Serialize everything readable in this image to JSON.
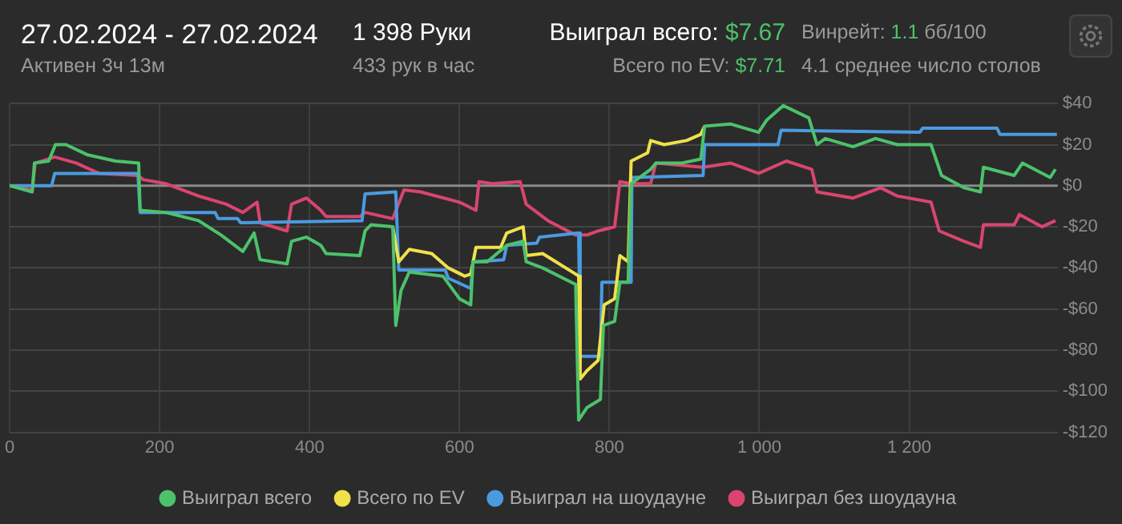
{
  "chart_data": {
    "type": "line",
    "title": "27.02.2024 - 27.02.2024",
    "subtitle": "Активен 3ч 13м",
    "annotations": [
      "1 398 Руки",
      "433 рук в час",
      "Выиграл всего: $7.67",
      "Всего по EV: $7.71",
      "Винрейт: 1.1 бб/100",
      "4.1 среднее число столов"
    ],
    "xlim": [
      0,
      1398
    ],
    "xticks": [
      0,
      200,
      400,
      600,
      800,
      {
        "value": 1000,
        "label": "1 000"
      },
      {
        "value": 1200,
        "label": "1 200"
      }
    ],
    "ylim": [
      -120,
      40
    ],
    "yticks": [
      {
        "value": 40,
        "label": "$40"
      },
      {
        "value": 20,
        "label": "$20"
      },
      {
        "value": 0,
        "label": "$0"
      },
      {
        "value": -20,
        "label": "-$20"
      },
      {
        "value": -40,
        "label": "-$40"
      },
      {
        "value": -60,
        "label": "-$60"
      },
      {
        "value": -80,
        "label": "-$80"
      },
      {
        "value": -100,
        "label": "-$100"
      },
      {
        "value": -120,
        "label": "-$120"
      }
    ],
    "grid": true,
    "legend": "bottom",
    "marker": "none",
    "series": [
      {
        "name": "Выиграл всего",
        "color": "#4cc26a",
        "x": [
          0,
          30,
          33,
          52,
          61,
          75,
          104,
          141,
          172,
          174,
          208,
          252,
          282,
          311,
          326,
          334,
          370,
          376,
          396,
          415,
          422,
          467,
          474,
          482,
          511,
          515,
          522,
          533,
          578,
          600,
          615,
          618,
          637,
          663,
          685,
          689,
          711,
          755,
          759,
          770,
          788,
          792,
          807,
          814,
          825,
          829,
          855,
          862,
          896,
          922,
          927,
          962,
          999,
          1010,
          1032,
          1066,
          1077,
          1088,
          1125,
          1155,
          1184,
          1229,
          1243,
          1273,
          1295,
          1299,
          1340,
          1351,
          1388,
          1395
        ],
        "values": [
          0,
          -3,
          11,
          12,
          20,
          20,
          15,
          12,
          11,
          -12,
          -13,
          -17,
          -24,
          -32,
          -23,
          -36,
          -38,
          -27,
          -25,
          -29,
          -33,
          -34,
          -22,
          -19,
          -20,
          -68,
          -51,
          -42,
          -44,
          -55,
          -58,
          -37,
          -37,
          -29,
          -27,
          -37,
          -40,
          -48,
          -114,
          -108,
          -104,
          -68,
          -66,
          -47,
          -47,
          1,
          8,
          11,
          11,
          13,
          29,
          30,
          26,
          32,
          39,
          33,
          20,
          23,
          19,
          23,
          20,
          20,
          5,
          -1,
          -3,
          9,
          5,
          11,
          4,
          8
        ]
      },
      {
        "name": "Всего по EV",
        "color": "#f0e14a",
        "x": [
          511,
          519,
          533,
          563,
          585,
          607,
          615,
          622,
          655,
          663,
          685,
          689,
          711,
          755,
          759,
          761,
          770,
          785,
          793,
          807,
          814,
          825,
          829,
          851,
          855,
          873,
          903,
          922,
          927
        ],
        "values": [
          -20,
          -37,
          -31,
          -33,
          -40,
          -44,
          -43,
          -30,
          -30,
          -23,
          -20,
          -34,
          -33,
          -43,
          -44,
          -94,
          -90,
          -85,
          -58,
          -55,
          -34,
          -37,
          12,
          16,
          22,
          20,
          22,
          25,
          29
        ]
      },
      {
        "name": "Выиграл на шоудауне",
        "color": "#4a9be0",
        "x": [
          0,
          56,
          60,
          171,
          174,
          274,
          278,
          304,
          308,
          470,
          474,
          515,
          519,
          581,
          585,
          615,
          618,
          659,
          663,
          703,
          707,
          759,
          761,
          788,
          790,
          829,
          830,
          925,
          927,
          1025,
          1029,
          1214,
          1218,
          1317,
          1321,
          1397
        ],
        "values": [
          0,
          0,
          6,
          6,
          -13,
          -13,
          -16,
          -16,
          -18,
          -17,
          -4,
          -3,
          -41,
          -41,
          -45,
          -50,
          -37,
          -36,
          -29,
          -28,
          -25,
          -23,
          -83,
          -83,
          -47,
          -47,
          4,
          5,
          20,
          20,
          27,
          26,
          28,
          28,
          25,
          25
        ]
      },
      {
        "name": "Выиграл без шоудауна",
        "color": "#d9456e",
        "x": [
          0,
          30,
          34,
          60,
          89,
          119,
          171,
          178,
          208,
          252,
          289,
          311,
          330,
          334,
          370,
          376,
          396,
          415,
          422,
          467,
          474,
          511,
          526,
          548,
          600,
          622,
          626,
          644,
          681,
          689,
          718,
          755,
          770,
          785,
          807,
          814,
          829,
          855,
          862,
          925,
          962,
          999,
          1036,
          1070,
          1077,
          1125,
          1162,
          1184,
          1229,
          1240,
          1273,
          1295,
          1299,
          1340,
          1347,
          1377,
          1395
        ],
        "values": [
          0,
          -2,
          11,
          14,
          11,
          6,
          5,
          3,
          1,
          -5,
          -9,
          -13,
          -8,
          -18,
          -22,
          -9,
          -6,
          -12,
          -15,
          -15,
          -13,
          -16,
          -2,
          -3,
          -8,
          -12,
          2,
          1,
          2,
          -9,
          -17,
          -24,
          -24,
          -22,
          -20,
          2,
          1,
          1,
          11,
          9,
          11,
          6,
          12,
          8,
          -3,
          -6,
          -1,
          -5,
          -8,
          -22,
          -27,
          -30,
          -19,
          -19,
          -14,
          -20,
          -17
        ]
      }
    ]
  }
}
